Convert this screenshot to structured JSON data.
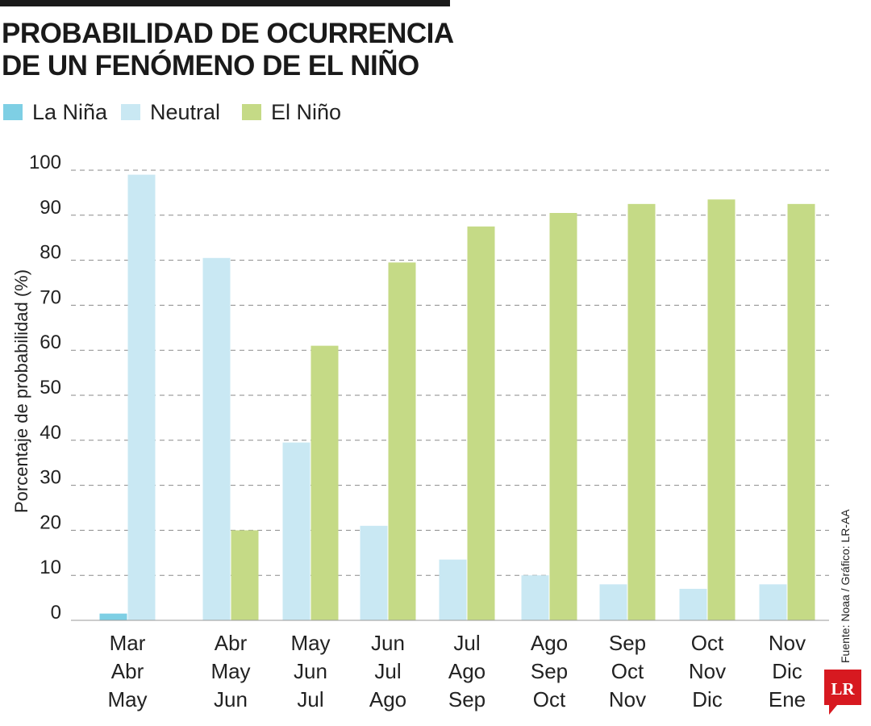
{
  "title_lines": [
    "PROBABILIDAD DE OCURRENCIA",
    "DE UN FENÓMENO DE EL NIÑO"
  ],
  "legend": [
    {
      "label": "La Niña",
      "color": "#7ecfe4"
    },
    {
      "label": "Neutral",
      "color": "#c9e8f3"
    },
    {
      "label": "El Niño",
      "color": "#c5da86"
    }
  ],
  "source": "Fuente: Noaa / Gráfico: LR-AA",
  "logo_text": "LR",
  "logo_color": "#d71920",
  "chart_data": {
    "type": "bar",
    "ylabel": "Porcentaje de probabilidad (%)",
    "ylim": [
      0,
      100
    ],
    "yticks": [
      0,
      10,
      20,
      30,
      40,
      50,
      60,
      70,
      80,
      90,
      100
    ],
    "grid": "horizontal dashed",
    "legend_position": "top-left",
    "categories": [
      [
        "Mar",
        "Abr",
        "May"
      ],
      [
        "Abr",
        "May",
        "Jun"
      ],
      [
        "May",
        "Jun",
        "Jul"
      ],
      [
        "Jun",
        "Jul",
        "Ago"
      ],
      [
        "Jul",
        "Ago",
        "Sep"
      ],
      [
        "Ago",
        "Sep",
        "Oct"
      ],
      [
        "Sep",
        "Oct",
        "Nov"
      ],
      [
        "Oct",
        "Nov",
        "Dic"
      ],
      [
        "Nov",
        "Dic",
        "Ene"
      ]
    ],
    "series": [
      {
        "name": "La Niña",
        "color": "#7ecfe4",
        "values": [
          1.5,
          0,
          0,
          0,
          0,
          0,
          0,
          0,
          0
        ]
      },
      {
        "name": "Neutral",
        "color": "#c9e8f3",
        "values": [
          99,
          80.5,
          39.5,
          21,
          13.5,
          10,
          8,
          7,
          8
        ]
      },
      {
        "name": "El Niño",
        "color": "#c5da86",
        "values": [
          0,
          20,
          61,
          79.5,
          87.5,
          90.5,
          92.5,
          93.5,
          92.5
        ]
      }
    ]
  }
}
